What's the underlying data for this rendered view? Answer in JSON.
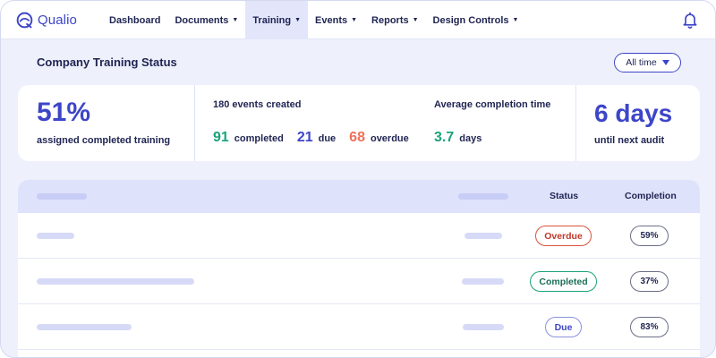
{
  "app": {
    "brand": "Qualio",
    "accent": "#3d45c8"
  },
  "nav": {
    "items": [
      {
        "label": "Dashboard",
        "has_caret": false,
        "active": false
      },
      {
        "label": "Documents",
        "has_caret": true,
        "active": false
      },
      {
        "label": "Training",
        "has_caret": true,
        "active": true
      },
      {
        "label": "Events",
        "has_caret": true,
        "active": false
      },
      {
        "label": "Reports",
        "has_caret": true,
        "active": false
      },
      {
        "label": "Design Controls",
        "has_caret": true,
        "active": false
      }
    ],
    "caret_glyph": "▼",
    "notification_icon": "bell-icon"
  },
  "page": {
    "title": "Company Training Status",
    "filter": {
      "selected": "All time"
    }
  },
  "stats": {
    "completed_pct": "51%",
    "completed_pct_label": "assigned completed training",
    "events_title": "180 events created",
    "completed_count": "91",
    "completed_label": "completed",
    "due_count": "21",
    "due_label": "due",
    "overdue_count": "68",
    "overdue_label": "overdue",
    "avg_title": "Average completion time",
    "avg_value": "3.7",
    "avg_unit": "days",
    "days_until_audit": "6 days",
    "days_until_audit_label": "until next audit"
  },
  "table": {
    "headers": {
      "status": "Status",
      "completion": "Completion"
    },
    "rows": [
      {
        "status": "Overdue",
        "status_kind": "overdue",
        "completion": "59%"
      },
      {
        "status": "Completed",
        "status_kind": "completed",
        "completion": "37%"
      },
      {
        "status": "Due",
        "status_kind": "due",
        "completion": "83%"
      }
    ]
  },
  "colors": {
    "green": "#1aa37a",
    "blue": "#3d45c8",
    "orange": "#f0705a",
    "overdue": "#d9533c"
  }
}
